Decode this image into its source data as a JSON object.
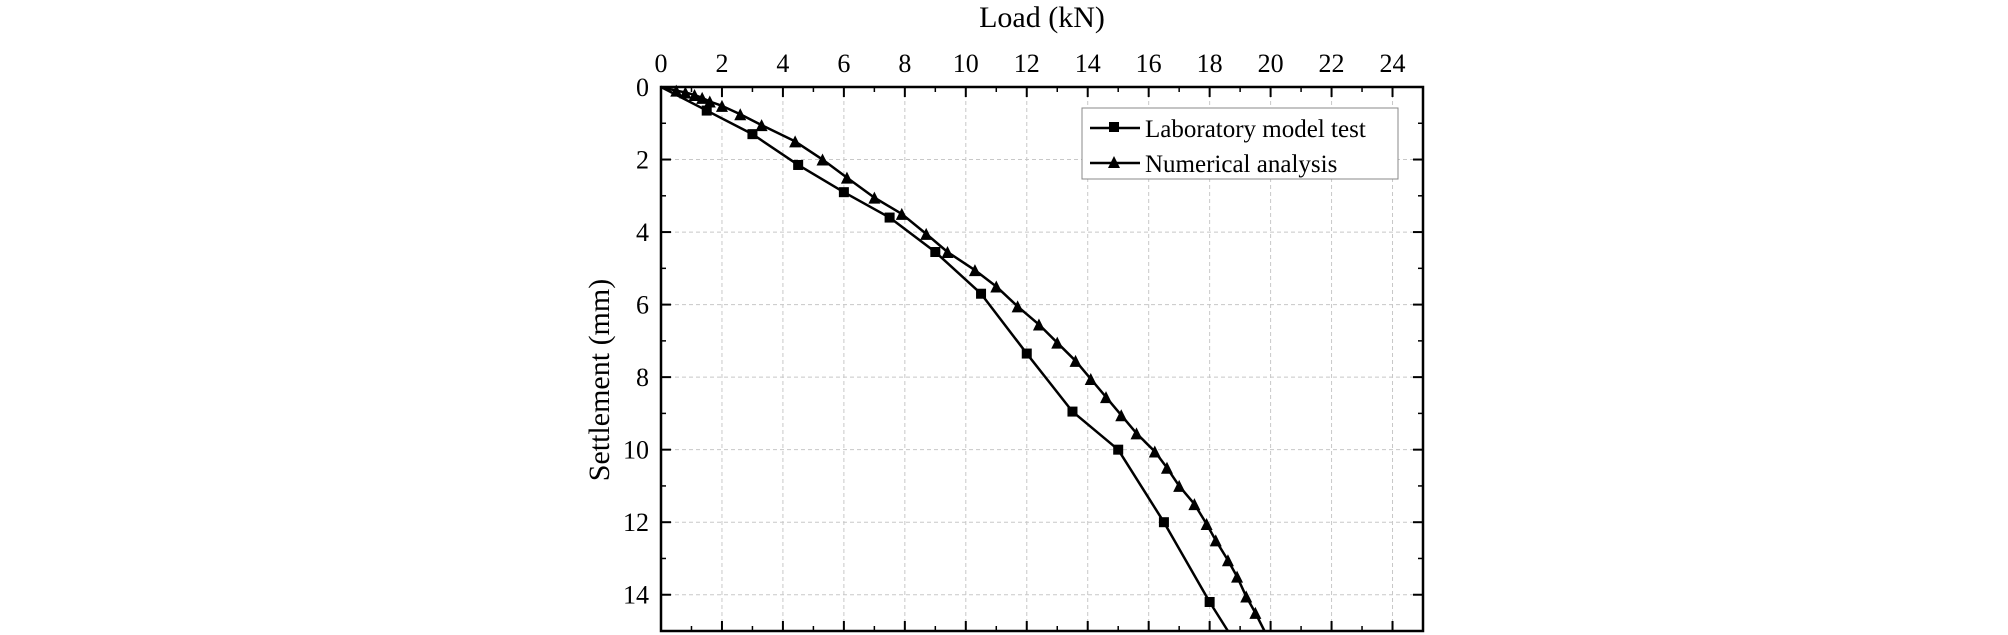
{
  "chart_data": {
    "type": "line",
    "xlabel": "Load (kN)",
    "ylabel": "Settlement (mm)",
    "x_axis_position": "top",
    "y_axis_inverted": true,
    "xlim": [
      0,
      25
    ],
    "ylim": [
      0,
      15
    ],
    "x_ticks": [
      "0",
      "2",
      "4",
      "6",
      "8",
      "10",
      "12",
      "14",
      "16",
      "18",
      "20",
      "22",
      "24"
    ],
    "y_ticks": [
      "0",
      "2",
      "4",
      "6",
      "8",
      "10",
      "12",
      "14"
    ],
    "grid": true,
    "legend_position": "top-right",
    "series": [
      {
        "name": "Laboratory model test",
        "marker": "square",
        "points": [
          [
            0,
            0
          ],
          [
            1.5,
            0.65
          ],
          [
            3.0,
            1.3
          ],
          [
            4.5,
            2.15
          ],
          [
            6.0,
            2.9
          ],
          [
            7.5,
            3.6
          ],
          [
            9.0,
            4.55
          ],
          [
            10.5,
            5.7
          ],
          [
            12.0,
            7.35
          ],
          [
            13.5,
            8.95
          ],
          [
            15.0,
            10.0
          ],
          [
            16.5,
            12.0
          ],
          [
            18.0,
            14.2
          ],
          [
            18.6,
            15.0
          ]
        ]
      },
      {
        "name": "Numerical analysis",
        "marker": "triangle",
        "points": [
          [
            0,
            0
          ],
          [
            0.5,
            0.1
          ],
          [
            0.8,
            0.15
          ],
          [
            1.1,
            0.22
          ],
          [
            1.35,
            0.3
          ],
          [
            1.6,
            0.4
          ],
          [
            2.0,
            0.52
          ],
          [
            2.6,
            0.75
          ],
          [
            3.3,
            1.05
          ],
          [
            4.4,
            1.5
          ],
          [
            5.3,
            2.0
          ],
          [
            6.1,
            2.5
          ],
          [
            7.0,
            3.05
          ],
          [
            7.9,
            3.5
          ],
          [
            8.7,
            4.05
          ],
          [
            9.4,
            4.55
          ],
          [
            10.3,
            5.05
          ],
          [
            11.0,
            5.5
          ],
          [
            11.7,
            6.05
          ],
          [
            12.4,
            6.55
          ],
          [
            13.0,
            7.05
          ],
          [
            13.6,
            7.55
          ],
          [
            14.1,
            8.05
          ],
          [
            14.6,
            8.55
          ],
          [
            15.1,
            9.05
          ],
          [
            15.6,
            9.55
          ],
          [
            16.2,
            10.05
          ],
          [
            16.6,
            10.5
          ],
          [
            17.0,
            11.0
          ],
          [
            17.5,
            11.5
          ],
          [
            17.9,
            12.05
          ],
          [
            18.2,
            12.5
          ],
          [
            18.6,
            13.05
          ],
          [
            18.9,
            13.5
          ],
          [
            19.2,
            14.05
          ],
          [
            19.5,
            14.5
          ],
          [
            19.8,
            15.0
          ]
        ]
      }
    ]
  }
}
